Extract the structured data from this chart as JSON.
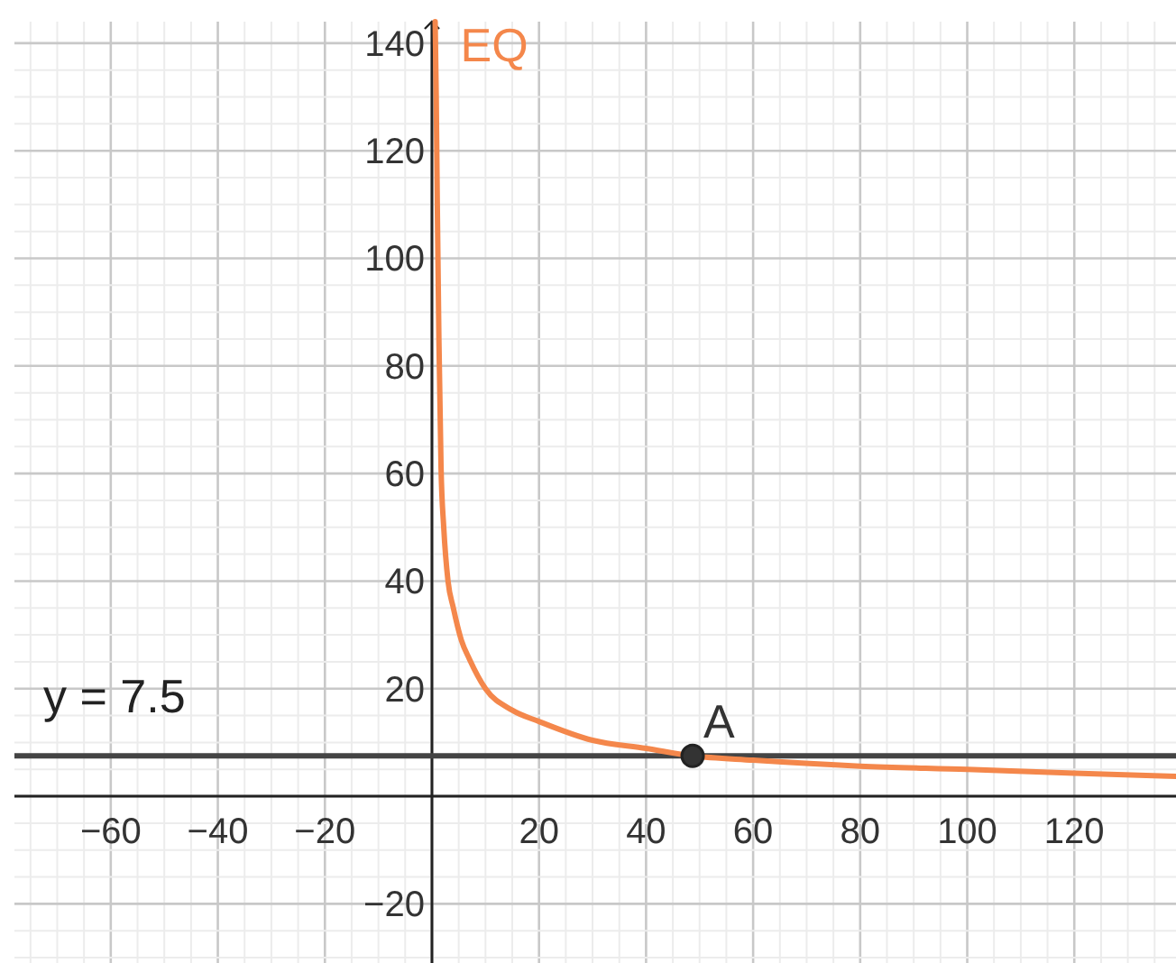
{
  "chart_data": {
    "type": "line",
    "xlim": [
      -78,
      139
    ],
    "ylim": [
      -31,
      144
    ],
    "xticks": [
      -60,
      -40,
      -20,
      20,
      40,
      60,
      80,
      100,
      120
    ],
    "yticks": [
      -20,
      20,
      40,
      60,
      80,
      100,
      120,
      140
    ],
    "grid": true,
    "marker": "none",
    "line_style": "solid",
    "ref_lines": [
      {
        "axis": "y",
        "value": 7.5,
        "label": "y = 7.5",
        "color": "#444444"
      }
    ],
    "series": [
      {
        "name": "EQ",
        "color": "#f4874b",
        "x": [
          0.6,
          0.8,
          1,
          1.3,
          1.7,
          2.2,
          3,
          4,
          5.5,
          7,
          10,
          15,
          20,
          30,
          40,
          48.7,
          60,
          80,
          100,
          120,
          139
        ],
        "values": [
          144,
          130,
          110,
          85,
          61,
          50,
          40,
          35,
          29,
          25.5,
          20,
          16,
          13.9,
          10.4,
          8.9,
          7.5,
          6.7,
          5.6,
          5.0,
          4.3,
          3.7
        ]
      },
      {
        "name": "A",
        "type": "scatter",
        "marker": "circle",
        "color": "#333333",
        "x": [
          48.7
        ],
        "values": [
          7.5
        ]
      }
    ]
  }
}
